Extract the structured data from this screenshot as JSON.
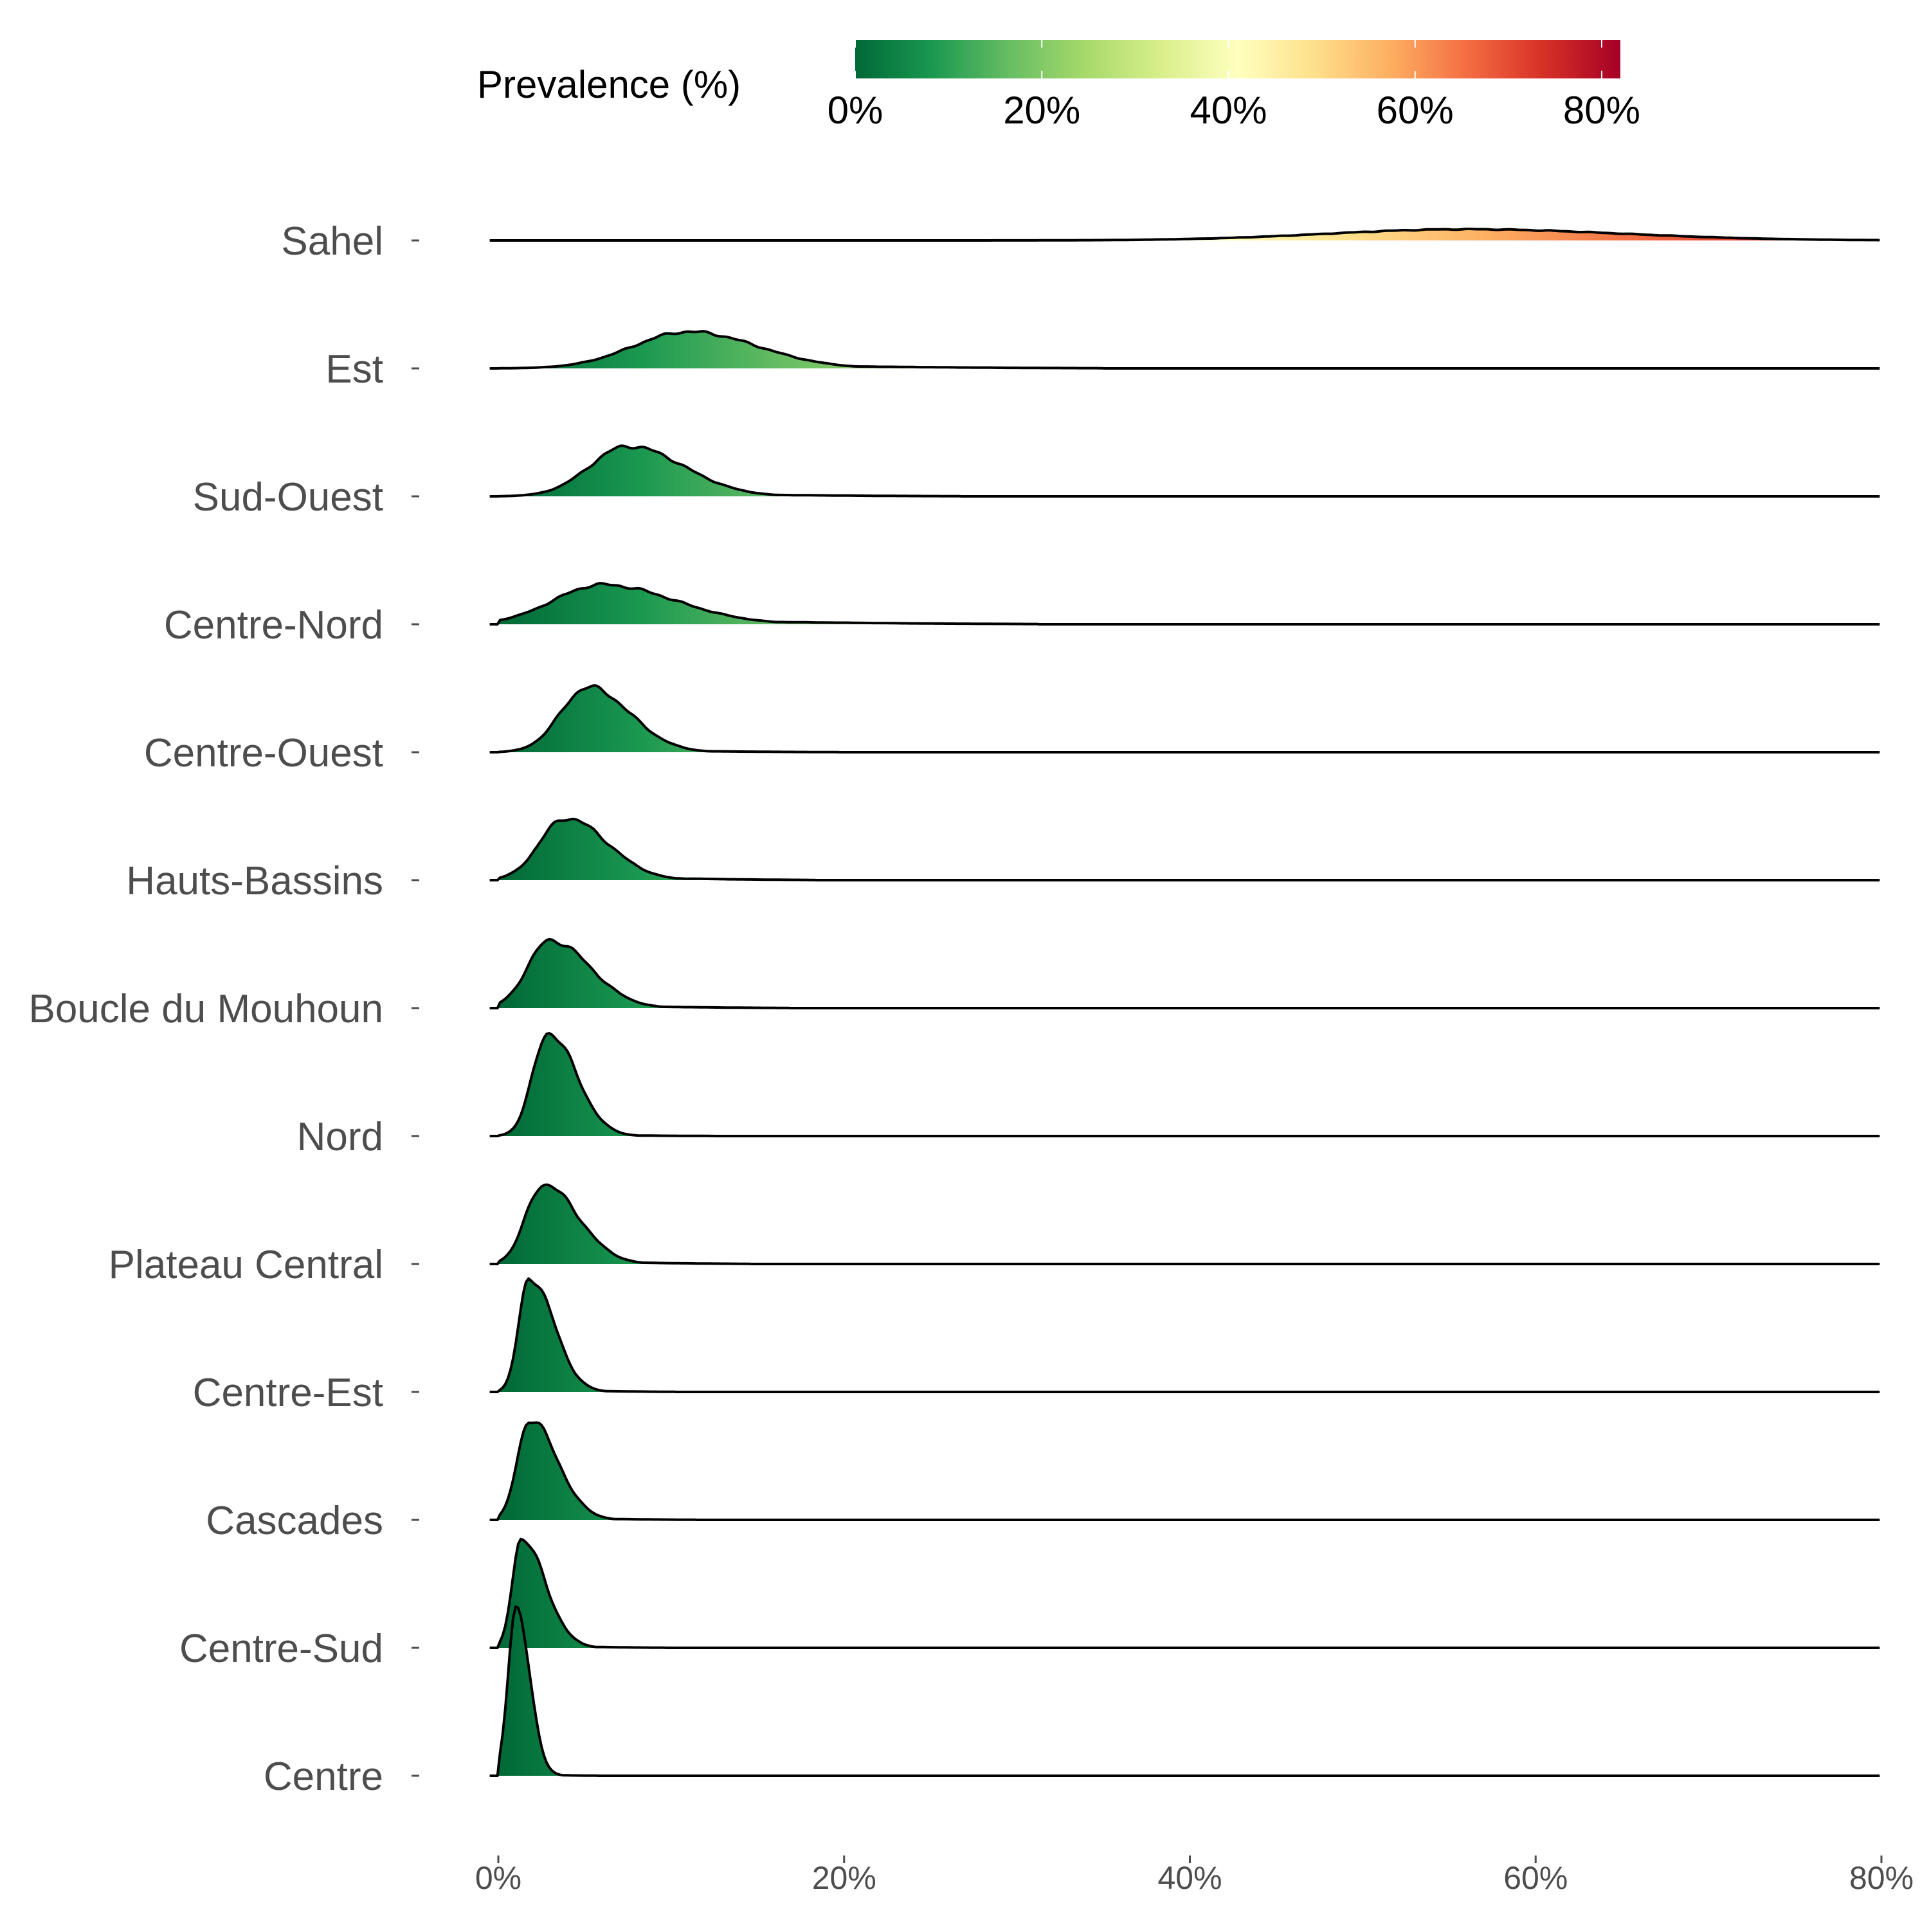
{
  "chart_data": {
    "type": "ridgeline",
    "title": "",
    "xlabel": "",
    "ylabel": "",
    "xlim": [
      0,
      80
    ],
    "x_ticks": [
      0,
      20,
      40,
      60,
      80
    ],
    "x_tick_labels": [
      "0%",
      "20%",
      "40%",
      "60%",
      "80%"
    ],
    "grid": false,
    "legend": {
      "title": "Prevalence (%)",
      "placement": "top",
      "range": [
        0,
        82
      ],
      "ticks": [
        0,
        20,
        40,
        60,
        80
      ],
      "tick_labels": [
        "0%",
        "20%",
        "40%",
        "60%",
        "80%"
      ],
      "colors": [
        "#006837",
        "#1a9850",
        "#66bd63",
        "#a6d96a",
        "#d9ef8b",
        "#ffffbf",
        "#fee08b",
        "#fdae61",
        "#f46d43",
        "#d73027",
        "#a50026"
      ]
    },
    "series": [
      {
        "name": "Sahel",
        "mode": 56,
        "sd_left": 8,
        "sd_right": 9,
        "peak": 0.19,
        "tail": 0
      },
      {
        "name": "Est",
        "mode": 11,
        "sd_left": 3.2,
        "sd_right": 4.0,
        "peak": 0.62,
        "tail": 0.05
      },
      {
        "name": "Sud-Ouest",
        "mode": 7.5,
        "sd_left": 2.2,
        "sd_right": 3.2,
        "peak": 0.85,
        "tail": 0.04
      },
      {
        "name": "Centre-Nord",
        "mode": 6,
        "sd_left": 2.8,
        "sd_right": 4.2,
        "peak": 0.67,
        "tail": 0.06
      },
      {
        "name": "Centre-Ouest",
        "mode": 5.2,
        "sd_left": 1.6,
        "sd_right": 2.4,
        "peak": 1.1,
        "tail": 0.03
      },
      {
        "name": "Hauts-Bassins",
        "mode": 3.9,
        "sd_left": 1.5,
        "sd_right": 2.4,
        "peak": 1.05,
        "tail": 0.05
      },
      {
        "name": "Boucle du Mouhoun",
        "mode": 3.0,
        "sd_left": 1.3,
        "sd_right": 2.3,
        "peak": 1.15,
        "tail": 0.04
      },
      {
        "name": "Nord",
        "mode": 2.9,
        "sd_left": 0.9,
        "sd_right": 1.6,
        "peak": 1.75,
        "tail": 0.02
      },
      {
        "name": "Plateau Central",
        "mode": 2.6,
        "sd_left": 1.0,
        "sd_right": 2.0,
        "peak": 1.35,
        "tail": 0.04
      },
      {
        "name": "Centre-Est",
        "mode": 1.8,
        "sd_left": 0.6,
        "sd_right": 1.4,
        "peak": 1.95,
        "tail": 0.03
      },
      {
        "name": "Cascades",
        "mode": 1.8,
        "sd_left": 0.7,
        "sd_right": 1.6,
        "peak": 1.7,
        "tail": 0.03
      },
      {
        "name": "Centre-Sud",
        "mode": 1.3,
        "sd_left": 0.5,
        "sd_right": 1.4,
        "peak": 1.85,
        "tail": 0.03
      },
      {
        "name": "Centre",
        "mode": 1.0,
        "sd_left": 0.45,
        "sd_right": 0.8,
        "peak": 2.85,
        "tail": 0.02
      }
    ]
  }
}
